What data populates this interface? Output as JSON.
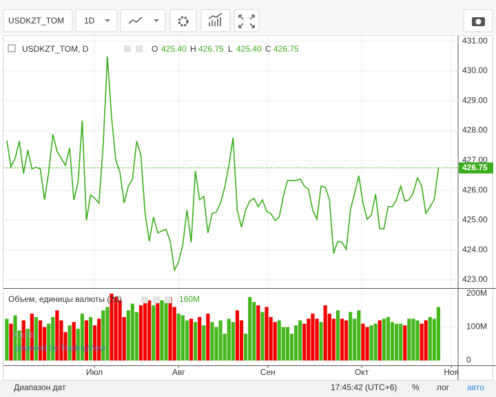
{
  "toolbar": {
    "symbol": "USDKZT_TOM",
    "interval": "1D"
  },
  "chart_data": {
    "type": "line",
    "series": [
      {
        "name": "USDKZT_TOM, D",
        "color": "#3aad1c",
        "values": [
          427.67,
          426.79,
          427.07,
          427.65,
          426.56,
          427.35,
          426.72,
          426.77,
          426.72,
          425.68,
          426.61,
          427.88,
          427.3,
          427.07,
          426.84,
          427.42,
          425.68,
          426.26,
          428.34,
          424.99,
          425.84,
          425.73,
          425.57,
          427.53,
          430.49,
          428.46,
          427.02,
          426.61,
          425.57,
          426.14,
          426.38,
          427.65,
          427.18,
          425.22,
          424.29,
          425.1,
          424.57,
          424.64,
          424.69,
          424.29,
          423.32,
          423.6,
          424.18,
          425.34,
          424.25,
          426.65,
          425.68,
          425.8,
          424.57,
          425.22,
          425.27,
          425.57,
          426.1,
          426.84,
          427.76,
          425.34,
          424.76,
          425.34,
          425.64,
          425.73,
          425.45,
          425.68,
          425.29,
          425.22,
          424.99,
          425.1,
          425.8,
          426.33,
          426.33,
          426.33,
          426.38,
          426.14,
          426.03,
          425.34,
          425.03,
          426.14,
          426.1,
          425.68,
          423.88,
          424.29,
          424.25,
          424.02,
          425.34,
          425.91,
          426.49,
          425.57,
          425.03,
          425.17,
          425.87,
          424.71,
          424.71,
          425.45,
          425.45,
          425.68,
          426.14,
          425.64,
          425.68,
          425.91,
          426.42,
          426.14,
          425.22,
          425.45,
          425.68,
          426.75
        ]
      }
    ],
    "legend": {
      "o_label": "O",
      "o": "425.40",
      "h_label": "H",
      "h": "426.75",
      "l_label": "L",
      "l": "425.40",
      "c_label": "C",
      "c": "426.75"
    },
    "last_label": "426.75",
    "ylim": [
      422.72,
      431.18
    ],
    "yticks": [
      {
        "value": 423,
        "label": "423.00"
      },
      {
        "value": 424,
        "label": "424.00"
      },
      {
        "value": 425,
        "label": "425.00"
      },
      {
        "value": 426,
        "label": "426.00"
      },
      {
        "value": 427,
        "label": "427.00"
      },
      {
        "value": 428,
        "label": "428.00"
      },
      {
        "value": 429,
        "label": "429.00"
      },
      {
        "value": 430,
        "label": "430.00"
      },
      {
        "value": 431,
        "label": "431.00"
      }
    ],
    "xlim": [
      -0.8,
      107.7
    ],
    "xticks": [
      {
        "value": 20.9,
        "label": "Июл"
      },
      {
        "value": 41,
        "label": "Авг"
      },
      {
        "value": 62.3,
        "label": "Сен"
      },
      {
        "value": 84.7,
        "label": "Окт"
      },
      {
        "value": 106.1,
        "label": "Ноя"
      }
    ],
    "grid": true,
    "volume": {
      "name": "Объем, единицы валюты (20)",
      "last_label": "160M",
      "up_color": "#45b81e",
      "down_color": "#f20000",
      "values": [
        125,
        110,
        135,
        90,
        120,
        95,
        140,
        130,
        120,
        100,
        110,
        130,
        150,
        120,
        85,
        105,
        115,
        95,
        140,
        120,
        130,
        105,
        125,
        150,
        160,
        200,
        190,
        180,
        130,
        150,
        170,
        145,
        165,
        175,
        180,
        165,
        175,
        180,
        175,
        190,
        160,
        140,
        135,
        120,
        125,
        115,
        130,
        105,
        140,
        115,
        100,
        120,
        80,
        125,
        115,
        150,
        120,
        80,
        190,
        175,
        165,
        145,
        160,
        130,
        115,
        120,
        100,
        100,
        80,
        105,
        120,
        110,
        125,
        140,
        125,
        115,
        165,
        140,
        125,
        150,
        125,
        120,
        145,
        125,
        150,
        110,
        100,
        105,
        110,
        120,
        125,
        130,
        115,
        110,
        110,
        105,
        125,
        125,
        120,
        110,
        120,
        130,
        125,
        160
      ],
      "ylim": [
        -14.4,
        212.4
      ],
      "yticks": [
        0,
        {
          "value": 100,
          "label": "100M"
        },
        {
          "value": 200,
          "label": "200M"
        }
      ]
    },
    "watermark": {
      "brand": "KASE",
      "powered": "powered by TradingView"
    }
  },
  "status_bar": {
    "range": "Диапазон дат",
    "time": "17:45:42 (UTC+6)",
    "percent": "%",
    "log": "лог",
    "auto": "авто"
  }
}
